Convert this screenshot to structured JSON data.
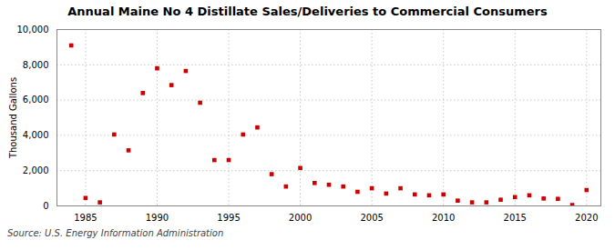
{
  "chart_data": {
    "type": "scatter",
    "title": "Annual Maine No 4 Distillate Sales/Deliveries to Commercial Consumers",
    "ylabel": "Thousand Gallons",
    "annotation": "Source: U.S. Energy Information Administration",
    "color": "#cc0000",
    "marker": "square",
    "x": [
      1984,
      1985,
      1986,
      1987,
      1988,
      1989,
      1990,
      1991,
      1992,
      1993,
      1994,
      1995,
      1996,
      1997,
      1998,
      1999,
      2000,
      2001,
      2002,
      2003,
      2004,
      2005,
      2006,
      2007,
      2008,
      2009,
      2010,
      2011,
      2012,
      2013,
      2014,
      2015,
      2016,
      2017,
      2018,
      2019,
      2020
    ],
    "values": [
      9100,
      450,
      200,
      4050,
      3150,
      6400,
      7800,
      6850,
      7650,
      5850,
      2600,
      2600,
      4050,
      4450,
      1800,
      1100,
      2150,
      1300,
      1200,
      1100,
      800,
      1000,
      700,
      1000,
      650,
      600,
      650,
      300,
      200,
      200,
      350,
      500,
      600,
      420,
      400,
      50,
      900
    ],
    "xlim": [
      1983,
      2021
    ],
    "xticks": [
      1985,
      1990,
      1995,
      2000,
      2005,
      2010,
      2015,
      2020
    ],
    "ylim": [
      0,
      10000
    ],
    "yticks": [
      0,
      {
        "value": 2000,
        "label": "2,000"
      },
      {
        "value": 4000,
        "label": "4,000"
      },
      {
        "value": 6000,
        "label": "6,000"
      },
      {
        "value": 8000,
        "label": "8,000"
      },
      {
        "value": 10000,
        "label": "10,000"
      }
    ],
    "grid": true
  }
}
